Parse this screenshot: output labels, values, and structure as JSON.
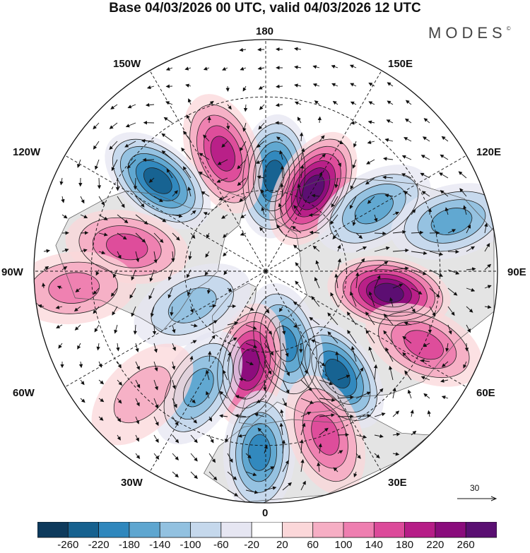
{
  "title": "Base 04/03/2026 00 UTC, valid 04/03/2026 12 UTC",
  "brand": "MODES",
  "brand_mark": "©",
  "map_labels": {
    "lon_180": "180",
    "lon_150W": "150W",
    "lon_150E": "150E",
    "lon_120W": "120W",
    "lon_120E": "120E",
    "lon_90W": "90W",
    "lon_90E": "90E",
    "lon_60W": "60W",
    "lon_60E": "60E",
    "lon_30W": "30W",
    "lon_30E": "30E",
    "lon_0": "0"
  },
  "reference_vector": "30",
  "colorbar": {
    "ticks": [
      "-260",
      "-220",
      "-180",
      "-140",
      "-100",
      "-60",
      "-20",
      "20",
      "60",
      "100",
      "140",
      "180",
      "220",
      "260"
    ],
    "colors": [
      "#0d3a5c",
      "#16618f",
      "#2f87bd",
      "#5ea6d0",
      "#92c1e0",
      "#c5d8ec",
      "#e6e6f2",
      "#ffffff",
      "#fbd7d9",
      "#f6aec4",
      "#ee7eb0",
      "#dc4a9a",
      "#b61d87",
      "#8a0c7c",
      "#5a0f72"
    ]
  },
  "anomalies": [
    {
      "id": "A1",
      "sign": -1,
      "lon": 175,
      "lat": 55,
      "amp": 180
    },
    {
      "id": "A2",
      "sign": 1,
      "lon": 150,
      "lat": 55,
      "amp": 240
    },
    {
      "id": "A3",
      "sign": 1,
      "lon": -160,
      "lat": 45,
      "amp": 150
    },
    {
      "id": "A4",
      "sign": -1,
      "lon": -130,
      "lat": 40,
      "amp": 190
    },
    {
      "id": "A5",
      "sign": -1,
      "lon": 120,
      "lat": 45,
      "amp": 130
    },
    {
      "id": "A6",
      "sign": -1,
      "lon": 105,
      "lat": 25,
      "amp": 100
    },
    {
      "id": "A7",
      "sign": 1,
      "lon": -100,
      "lat": 40,
      "amp": 110
    },
    {
      "id": "A8",
      "sign": 1,
      "lon": -85,
      "lat": 25,
      "amp": 70
    },
    {
      "id": "A9",
      "sign": 1,
      "lon": 80,
      "lat": 45,
      "amp": 220
    },
    {
      "id": "A10",
      "sign": 1,
      "lon": 65,
      "lat": 30,
      "amp": 130
    },
    {
      "id": "A11",
      "sign": -1,
      "lon": 35,
      "lat": 45,
      "amp": 200
    },
    {
      "id": "A12",
      "sign": -1,
      "lon": 15,
      "lat": 62,
      "amp": 140
    },
    {
      "id": "A13",
      "sign": 1,
      "lon": -10,
      "lat": 55,
      "amp": 210
    },
    {
      "id": "A14",
      "sign": -1,
      "lon": -30,
      "lat": 42,
      "amp": 120
    },
    {
      "id": "A15",
      "sign": -1,
      "lon": -2,
      "lat": 28,
      "amp": 170
    },
    {
      "id": "A16",
      "sign": 1,
      "lon": 20,
      "lat": 30,
      "amp": 130
    },
    {
      "id": "A17",
      "sign": -1,
      "lon": -65,
      "lat": 60,
      "amp": 60
    },
    {
      "id": "A18",
      "sign": 1,
      "lon": -45,
      "lat": 30,
      "amp": 40
    }
  ]
}
